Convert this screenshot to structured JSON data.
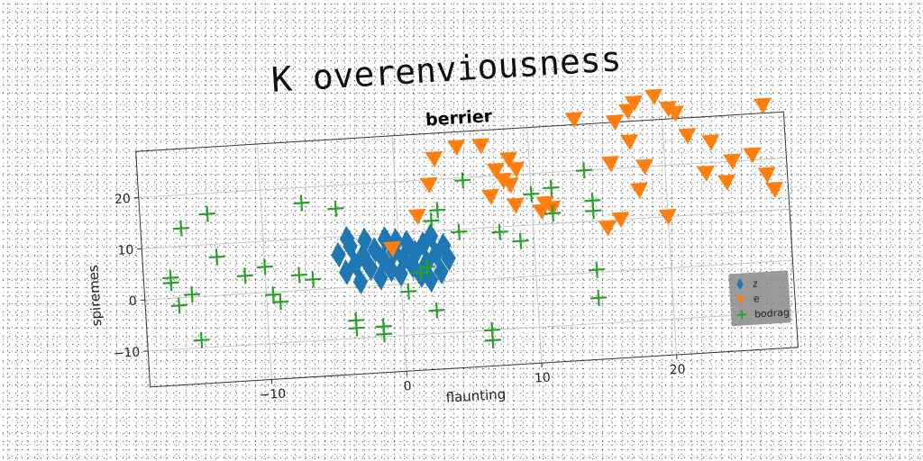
{
  "figure": {
    "suptitle": "K overenviousness",
    "background": "#ffffff"
  },
  "chart_data": {
    "type": "scatter",
    "title": "berrier",
    "xlabel": "flaunting",
    "ylabel": "spiremes",
    "xlim": [
      -19,
      29
    ],
    "ylim": [
      -17,
      29
    ],
    "xticks": [
      -10,
      0,
      10,
      20
    ],
    "yticks": [
      -10,
      0,
      10,
      20
    ],
    "xtick_labels": [
      "−10",
      "0",
      "10",
      "20"
    ],
    "ytick_labels": [
      "−10",
      "0",
      "10",
      "20"
    ],
    "grid": true,
    "legend_position": "lower-right",
    "series": [
      {
        "name": "z",
        "marker": "diamond",
        "color": "#1f77b4",
        "points": [
          [
            -4.5,
            6.5
          ],
          [
            -4,
            3
          ],
          [
            -3.6,
            8
          ],
          [
            -3.3,
            4.5
          ],
          [
            -3,
            1
          ],
          [
            -2.7,
            6
          ],
          [
            -2.5,
            9
          ],
          [
            -2.2,
            3.5
          ],
          [
            -1.8,
            7
          ],
          [
            -1.5,
            1.5
          ],
          [
            -1.2,
            5
          ],
          [
            -1,
            9
          ],
          [
            -0.7,
            3
          ],
          [
            -0.4,
            6.5
          ],
          [
            0,
            2
          ],
          [
            0.3,
            5
          ],
          [
            0.6,
            8
          ],
          [
            0.9,
            3.5
          ],
          [
            1.2,
            6
          ],
          [
            1.5,
            1.5
          ],
          [
            1.8,
            7.5
          ],
          [
            2,
            4
          ],
          [
            2.4,
            9
          ],
          [
            2.7,
            5.5
          ],
          [
            3,
            2
          ],
          [
            3.3,
            7
          ],
          [
            3.6,
            4.5
          ],
          [
            -3.8,
            9.5
          ],
          [
            -0.2,
            8.5
          ],
          [
            2.2,
            0.5
          ]
        ]
      },
      {
        "name": "e",
        "marker": "triangle_down",
        "color": "#ff7f0e",
        "points": [
          [
            -0.5,
            7
          ],
          [
            1.5,
            13
          ],
          [
            2.5,
            19
          ],
          [
            3,
            24
          ],
          [
            4.7,
            26
          ],
          [
            6.5,
            26
          ],
          [
            7.5,
            21
          ],
          [
            7,
            16
          ],
          [
            8,
            19
          ],
          [
            8.5,
            18
          ],
          [
            8.8,
            14
          ],
          [
            8.5,
            23
          ],
          [
            9,
            21
          ],
          [
            11,
            14
          ],
          [
            10.7,
            12.5
          ],
          [
            11.5,
            13
          ],
          [
            13.5,
            30
          ],
          [
            16.5,
            29
          ],
          [
            17.5,
            25
          ],
          [
            16,
            21
          ],
          [
            18.5,
            20
          ],
          [
            18,
            15.5
          ],
          [
            16.5,
            10
          ],
          [
            17.5,
            31
          ],
          [
            18,
            32.5
          ],
          [
            21,
            30
          ],
          [
            20.5,
            31
          ],
          [
            19.5,
            33.5
          ],
          [
            21.8,
            25.5
          ],
          [
            23.5,
            24
          ],
          [
            25,
            20
          ],
          [
            24.5,
            16
          ],
          [
            26.5,
            21
          ],
          [
            27.5,
            30.5
          ],
          [
            28,
            14
          ],
          [
            20,
            10
          ],
          [
            23,
            18
          ],
          [
            27.5,
            17
          ],
          [
            15.5,
            8.5
          ]
        ]
      },
      {
        "name": "bodrag",
        "marker": "plus",
        "color": "#2ca02c",
        "points": [
          [
            -17,
            4
          ],
          [
            -17,
            3
          ],
          [
            -16.5,
            -1.5
          ],
          [
            -16,
            13.5
          ],
          [
            -15.5,
            0.5
          ],
          [
            -14,
            16
          ],
          [
            -15,
            -8.5
          ],
          [
            -13.5,
            7.5
          ],
          [
            -11.5,
            3.5
          ],
          [
            -10,
            5
          ],
          [
            -9.5,
            -0.5
          ],
          [
            -9,
            -2
          ],
          [
            -7.5,
            3
          ],
          [
            -7,
            17
          ],
          [
            -6.5,
            2
          ],
          [
            -4.5,
            15.5
          ],
          [
            -3.5,
            -6.5
          ],
          [
            -3.5,
            -8
          ],
          [
            -1.5,
            -8
          ],
          [
            -1.5,
            -9.5
          ],
          [
            0.5,
            -1.5
          ],
          [
            1.5,
            2
          ],
          [
            2.5,
            -5.5
          ],
          [
            2,
            3
          ],
          [
            2.5,
            12
          ],
          [
            3,
            14
          ],
          [
            4.5,
            9.5
          ],
          [
            5,
            19.5
          ],
          [
            6.5,
            -10
          ],
          [
            6.5,
            -12
          ],
          [
            7.5,
            9
          ],
          [
            9,
            7
          ],
          [
            10,
            16
          ],
          [
            11.5,
            17
          ],
          [
            11.5,
            12
          ],
          [
            14,
            20
          ],
          [
            14.5,
            14
          ],
          [
            14.5,
            12
          ],
          [
            14.5,
            0.5
          ],
          [
            14.5,
            -5
          ]
        ]
      }
    ]
  }
}
